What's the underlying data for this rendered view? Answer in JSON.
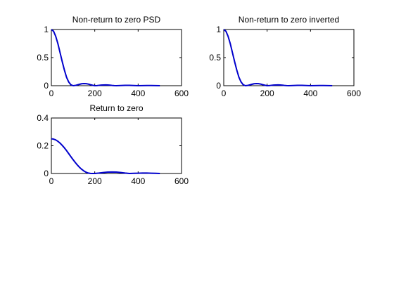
{
  "chart_data": [
    {
      "type": "line",
      "title": "Non-return to zero PSD",
      "xlabel": "",
      "ylabel": "",
      "xlim": [
        0,
        600
      ],
      "ylim": [
        0,
        1
      ],
      "xticks": [
        0,
        200,
        400,
        600
      ],
      "yticks": [
        0,
        0.5,
        1
      ],
      "xtick_labels": [
        "0",
        "200",
        "400",
        "600"
      ],
      "ytick_labels": [
        "0",
        "0.5",
        "1"
      ],
      "grid": false,
      "line_color": "#0000cc",
      "series": [
        {
          "x": [
            0,
            10,
            20,
            30,
            40,
            50,
            60,
            70,
            80,
            90,
            100,
            110,
            120,
            130,
            140,
            150,
            160,
            170,
            180,
            190,
            200,
            210,
            220,
            230,
            240,
            250,
            260,
            270,
            280,
            290,
            300,
            320,
            340,
            360,
            380,
            400,
            420,
            440,
            460,
            480,
            500
          ],
          "y": [
            1,
            0.97,
            0.88,
            0.75,
            0.59,
            0.43,
            0.28,
            0.15,
            0.065,
            0.016,
            0,
            0.004,
            0.014,
            0.025,
            0.034,
            0.038,
            0.036,
            0.029,
            0.018,
            0.008,
            0,
            0.002,
            0.007,
            0.011,
            0.013,
            0.014,
            0.012,
            0.009,
            0.005,
            0.002,
            0,
            0.003,
            0.006,
            0.006,
            0.003,
            0,
            0.002,
            0.003,
            0.003,
            0.001,
            0
          ]
        }
      ]
    },
    {
      "type": "line",
      "title": "Non-return to zero inverted",
      "xlabel": "",
      "ylabel": "",
      "xlim": [
        0,
        600
      ],
      "ylim": [
        0,
        1
      ],
      "xticks": [
        0,
        200,
        400,
        600
      ],
      "yticks": [
        0,
        0.5,
        1
      ],
      "xtick_labels": [
        "0",
        "200",
        "400",
        "600"
      ],
      "ytick_labels": [
        "0",
        "0.5",
        "1"
      ],
      "grid": false,
      "line_color": "#0000cc",
      "series": [
        {
          "x": [
            0,
            10,
            20,
            30,
            40,
            50,
            60,
            70,
            80,
            90,
            100,
            110,
            120,
            130,
            140,
            150,
            160,
            170,
            180,
            190,
            200,
            210,
            220,
            230,
            240,
            250,
            260,
            270,
            280,
            290,
            300,
            320,
            340,
            360,
            380,
            400,
            420,
            440,
            460,
            480,
            500
          ],
          "y": [
            1,
            0.97,
            0.88,
            0.75,
            0.59,
            0.43,
            0.28,
            0.15,
            0.065,
            0.016,
            0,
            0.004,
            0.014,
            0.025,
            0.034,
            0.038,
            0.036,
            0.029,
            0.018,
            0.008,
            0,
            0.002,
            0.007,
            0.011,
            0.013,
            0.014,
            0.012,
            0.009,
            0.005,
            0.002,
            0,
            0.003,
            0.006,
            0.006,
            0.003,
            0,
            0.002,
            0.003,
            0.003,
            0.001,
            0
          ]
        }
      ]
    },
    {
      "type": "line",
      "title": "Return to zero",
      "xlabel": "",
      "ylabel": "",
      "xlim": [
        0,
        600
      ],
      "ylim": [
        0,
        0.4
      ],
      "xticks": [
        0,
        200,
        400,
        600
      ],
      "yticks": [
        0,
        0.2,
        0.4
      ],
      "xtick_labels": [
        "0",
        "200",
        "400",
        "600"
      ],
      "ytick_labels": [
        "0",
        "0.2",
        "0.4"
      ],
      "grid": false,
      "line_color": "#0000cc",
      "series": [
        {
          "x": [
            0,
            10,
            20,
            30,
            40,
            50,
            60,
            70,
            80,
            90,
            100,
            110,
            120,
            130,
            140,
            150,
            160,
            170,
            180,
            190,
            200,
            220,
            240,
            260,
            280,
            300,
            320,
            340,
            360,
            380,
            400,
            420,
            440,
            460,
            480,
            500
          ],
          "y": [
            0.25,
            0.248,
            0.242,
            0.232,
            0.219,
            0.203,
            0.185,
            0.165,
            0.143,
            0.121,
            0.1,
            0.08,
            0.061,
            0.044,
            0.03,
            0.018,
            0.009,
            0.003,
            0.0005,
            0,
            0,
            0.003,
            0.007,
            0.01,
            0.011,
            0.01,
            0.007,
            0.003,
            0,
            0.001,
            0.002,
            0.003,
            0.003,
            0.002,
            0.001,
            0
          ]
        }
      ]
    }
  ]
}
